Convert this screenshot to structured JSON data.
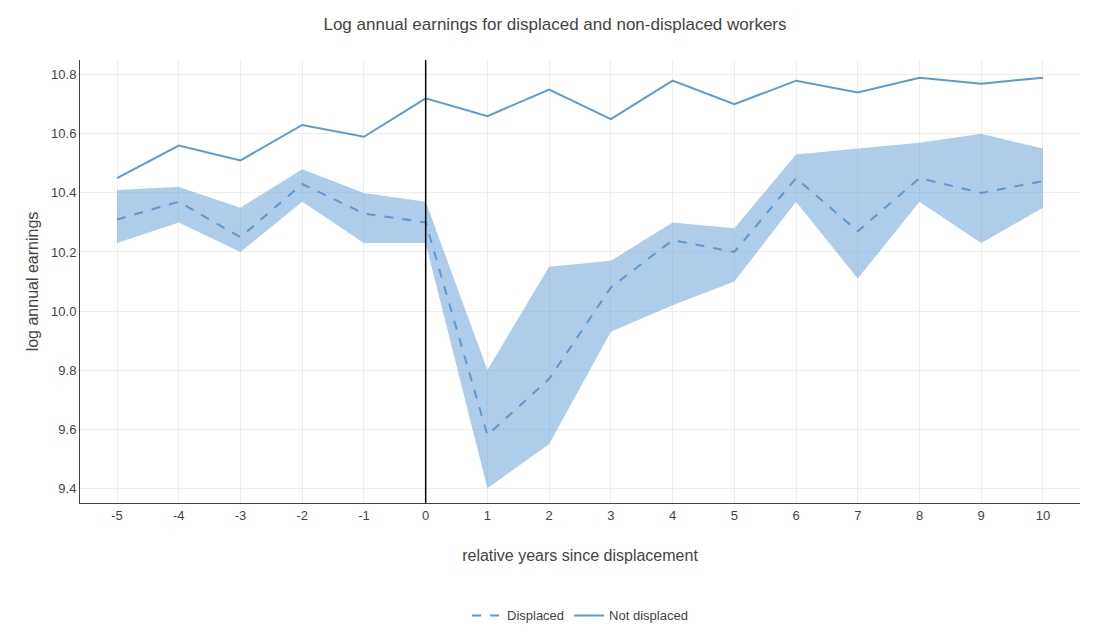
{
  "chart_data": {
    "type": "line",
    "title": "Log annual earnings for displaced and non-displaced workers",
    "xlabel": "relative years since displacement",
    "ylabel": "log annual earnings",
    "x": [
      -5,
      -4,
      -3,
      -2,
      -1,
      0,
      1,
      2,
      3,
      4,
      5,
      6,
      7,
      8,
      9,
      10
    ],
    "series": [
      {
        "name": "Not displaced",
        "color": "#5b9bd5",
        "line_style": "solid",
        "values": [
          10.45,
          10.56,
          10.51,
          10.63,
          10.59,
          10.72,
          10.66,
          10.75,
          10.65,
          10.78,
          10.7,
          10.78,
          10.74,
          10.79,
          10.77,
          10.79
        ]
      },
      {
        "name": "Displaced",
        "color": "#5b9bd5",
        "line_style": "dashed",
        "values": [
          10.31,
          10.37,
          10.25,
          10.43,
          10.33,
          10.3,
          9.58,
          9.77,
          10.08,
          10.24,
          10.2,
          10.45,
          10.27,
          10.45,
          10.4,
          10.44
        ],
        "lower": [
          10.23,
          10.3,
          10.2,
          10.37,
          10.23,
          10.23,
          9.4,
          9.55,
          9.93,
          10.02,
          10.1,
          10.37,
          10.11,
          10.37,
          10.23,
          10.35
        ],
        "upper": [
          10.41,
          10.42,
          10.35,
          10.48,
          10.4,
          10.37,
          9.8,
          10.15,
          10.17,
          10.3,
          10.28,
          10.53,
          10.55,
          10.57,
          10.6,
          10.55
        ]
      }
    ],
    "vline": 0,
    "xlim": [
      -5.6,
      10.6
    ],
    "xticks": [
      -5,
      -4,
      -3,
      -2,
      -1,
      0,
      1,
      2,
      3,
      4,
      5,
      6,
      7,
      8,
      9,
      10
    ],
    "ylim": [
      9.35,
      10.85
    ],
    "yticks": [
      9.4,
      9.6,
      9.8,
      {
        "value": 10.0,
        "label": "10.0"
      },
      10.2,
      10.4,
      10.6,
      10.8
    ],
    "grid": true,
    "legend": "bottom"
  }
}
